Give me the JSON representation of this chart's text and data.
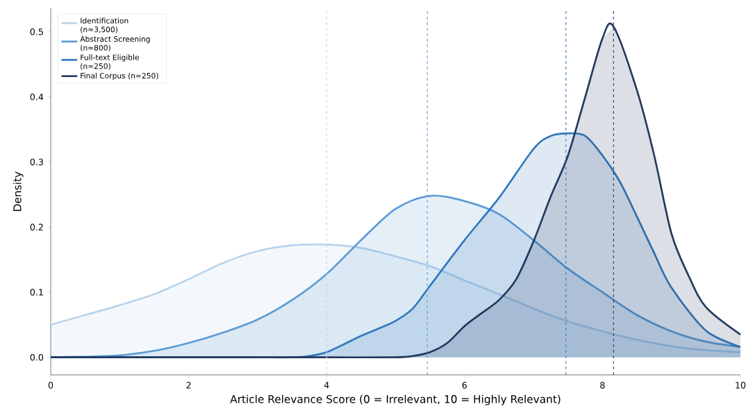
{
  "chart_data": {
    "type": "area",
    "xlabel": "Article Relevance Score (0 = Irrelevant, 10 = Highly Relevant)",
    "ylabel": "Density",
    "xlim": [
      0,
      10
    ],
    "ylim": [
      -0.027,
      0.536
    ],
    "xticks": [
      0,
      2,
      4,
      6,
      8,
      10
    ],
    "yticks": [
      {
        "value": 0,
        "label": "0.0"
      },
      0.1,
      0.2,
      0.3,
      0.4,
      0.5
    ],
    "legend": "top left",
    "grid": false,
    "line_style": "solid",
    "marker": "none",
    "series": [
      {
        "name": "Identification (n≈3,500)",
        "color": "#b9d3ec",
        "x": [
          0,
          0.5,
          1,
          1.5,
          2,
          2.5,
          3,
          3.5,
          4,
          4.5,
          5,
          5.5,
          6,
          6.5,
          7,
          7.5,
          8,
          8.5,
          9,
          9.5,
          10
        ],
        "values": [
          0.05,
          0.065,
          0.08,
          0.097,
          0.12,
          0.145,
          0.163,
          0.172,
          0.173,
          0.168,
          0.155,
          0.14,
          0.118,
          0.097,
          0.075,
          0.055,
          0.04,
          0.027,
          0.017,
          0.011,
          0.008
        ]
      },
      {
        "name": "Abstract Screening (n≈800)",
        "color": "#5b9bd5",
        "x": [
          0,
          0.5,
          1,
          1.5,
          2,
          2.5,
          3,
          3.5,
          4,
          4.5,
          5,
          5.5,
          6,
          6.5,
          7,
          7.5,
          8,
          8.5,
          9,
          9.5,
          10
        ],
        "values": [
          0.0,
          0.001,
          0.003,
          0.01,
          0.022,
          0.038,
          0.058,
          0.088,
          0.128,
          0.18,
          0.228,
          0.248,
          0.24,
          0.22,
          0.18,
          0.136,
          0.1,
          0.065,
          0.04,
          0.024,
          0.016
        ]
      },
      {
        "name": "Full-text Eligible (n≈250)",
        "color": "#3278bd",
        "x": [
          0,
          1,
          2,
          3,
          3.5,
          3.75,
          4,
          4.25,
          4.5,
          4.75,
          5,
          5.25,
          5.5,
          6,
          6.5,
          7,
          7.25,
          7.5,
          7.75,
          8,
          8.25,
          8.5,
          8.75,
          9,
          9.5,
          10
        ],
        "values": [
          0.0,
          0.0,
          0.0,
          0.0,
          0.0,
          0.002,
          0.008,
          0.02,
          0.033,
          0.044,
          0.056,
          0.075,
          0.11,
          0.18,
          0.245,
          0.32,
          0.34,
          0.344,
          0.34,
          0.31,
          0.27,
          0.216,
          0.16,
          0.107,
          0.041,
          0.016
        ]
      },
      {
        "name": "Final Corpus (n≈250)",
        "color": "#23395d",
        "x": [
          0,
          1,
          2,
          3,
          4,
          5,
          5.25,
          5.5,
          5.75,
          6,
          6.25,
          6.5,
          6.75,
          7,
          7.25,
          7.5,
          7.75,
          8,
          8.16,
          8.5,
          8.75,
          9,
          9.25,
          9.5,
          10
        ],
        "values": [
          0.0,
          0.0,
          0.0,
          0.0,
          0.0,
          0.0,
          0.002,
          0.008,
          0.022,
          0.048,
          0.068,
          0.088,
          0.12,
          0.178,
          0.247,
          0.31,
          0.4,
          0.49,
          0.508,
          0.41,
          0.31,
          0.19,
          0.125,
          0.077,
          0.035
        ]
      }
    ],
    "ref_lines": [
      {
        "axis": "x",
        "value": 4.0,
        "color": "#b9d3ec",
        "line_style": "dashed"
      },
      {
        "axis": "x",
        "value": 5.46,
        "color": "#5b9bd5",
        "line_style": "dashed"
      },
      {
        "axis": "x",
        "value": 7.47,
        "color": "#3278bd",
        "line_style": "dashed"
      },
      {
        "axis": "x",
        "value": 8.16,
        "color": "#23395d",
        "line_style": "dashed"
      }
    ]
  }
}
